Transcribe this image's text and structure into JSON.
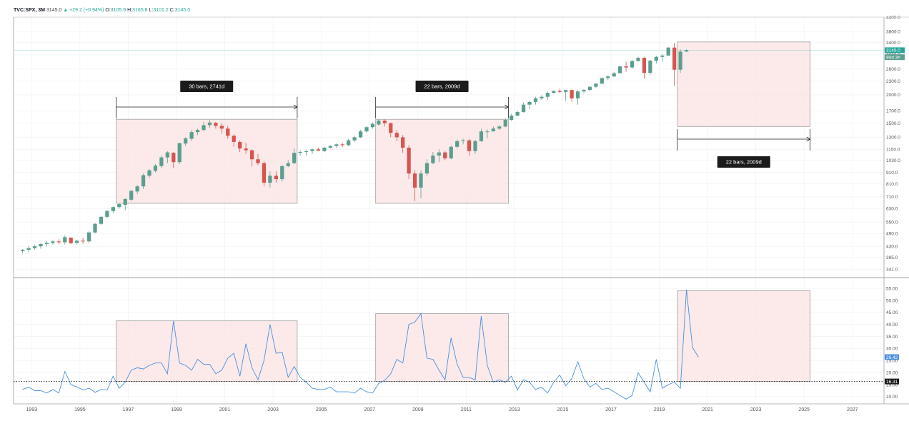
{
  "header": {
    "symbol": "TVC:SPX, 3M",
    "last": "3145.0",
    "change": "▲ +29.2 (+0.94%)",
    "o_label": "O:",
    "o": "3105.9",
    "h_label": "H:",
    "h": "3165.8",
    "l_label": "L:",
    "l": "3101.2",
    "c_label": "C:",
    "c": "3145.0"
  },
  "colors": {
    "up": "#5b9e8f",
    "down": "#d9534f",
    "box_fill": "#f9e3e1",
    "box_stroke": "#a0a0a0",
    "vix_line": "#4a8fe0",
    "grid": "#eef0f3"
  },
  "chart_data": [
    {
      "type": "candlestick",
      "title": "",
      "scale": "log",
      "ylim": [
        320,
        4400
      ],
      "y_ticks": [
        "341.0",
        "385.0",
        "430.0",
        "490.0",
        "550.0",
        "630.0",
        "710.0",
        "810.0",
        "910.0",
        "1030.0",
        "1150.0",
        "1300.0",
        "1500.0",
        "1700.0",
        "2000.0",
        "2300.0",
        "2600.0",
        "3000.0",
        "3400.0",
        "3800.0",
        "4400.0"
      ],
      "price_tags": [
        {
          "label": "3145.0",
          "value": 3145
        },
        {
          "label": "90d 3h",
          "value": 2930
        }
      ],
      "candles_start_year": 1992.5,
      "candles_step_years": 0.25,
      "candles": [
        [
          410,
          418,
          400,
          415
        ],
        [
          415,
          430,
          405,
          422
        ],
        [
          422,
          438,
          416,
          430
        ],
        [
          430,
          446,
          420,
          440
        ],
        [
          440,
          452,
          430,
          445
        ],
        [
          445,
          458,
          438,
          452
        ],
        [
          452,
          462,
          440,
          448
        ],
        [
          448,
          480,
          438,
          472
        ],
        [
          470,
          462,
          440,
          444
        ],
        [
          445,
          460,
          438,
          455
        ],
        [
          455,
          470,
          440,
          452
        ],
        [
          452,
          500,
          445,
          495
        ],
        [
          495,
          545,
          490,
          540
        ],
        [
          540,
          585,
          535,
          580
        ],
        [
          580,
          620,
          570,
          615
        ],
        [
          615,
          645,
          600,
          640
        ],
        [
          640,
          665,
          630,
          660
        ],
        [
          655,
          700,
          620,
          695
        ],
        [
          690,
          760,
          680,
          755
        ],
        [
          750,
          800,
          730,
          790
        ],
        [
          790,
          900,
          770,
          885
        ],
        [
          880,
          940,
          860,
          930
        ],
        [
          925,
          990,
          910,
          975
        ],
        [
          970,
          1080,
          950,
          1060
        ],
        [
          1060,
          1130,
          1000,
          1115
        ],
        [
          1110,
          1120,
          950,
          1010
        ],
        [
          1010,
          1230,
          990,
          1225
        ],
        [
          1220,
          1300,
          1190,
          1285
        ],
        [
          1280,
          1400,
          1250,
          1370
        ],
        [
          1370,
          1420,
          1330,
          1400
        ],
        [
          1400,
          1520,
          1380,
          1470
        ],
        [
          1470,
          1550,
          1430,
          1510
        ],
        [
          1505,
          1520,
          1420,
          1460
        ],
        [
          1460,
          1500,
          1350,
          1420
        ],
        [
          1420,
          1460,
          1280,
          1320
        ],
        [
          1320,
          1340,
          1180,
          1240
        ],
        [
          1240,
          1260,
          1120,
          1160
        ],
        [
          1160,
          1230,
          1100,
          1140
        ],
        [
          1140,
          1150,
          970,
          1040
        ],
        [
          1040,
          1100,
          980,
          1000
        ],
        [
          1000,
          1020,
          790,
          820
        ],
        [
          820,
          920,
          780,
          880
        ],
        [
          880,
          920,
          820,
          850
        ],
        [
          850,
          980,
          830,
          970
        ],
        [
          970,
          1030,
          960,
          1000
        ],
        [
          1000,
          1160,
          990,
          1110
        ],
        [
          1110,
          1140,
          1080,
          1120
        ],
        [
          1120,
          1140,
          1080,
          1130
        ],
        [
          1130,
          1160,
          1100,
          1150
        ],
        [
          1150,
          1170,
          1130,
          1135
        ],
        [
          1130,
          1180,
          1120,
          1170
        ],
        [
          1170,
          1200,
          1160,
          1190
        ],
        [
          1190,
          1220,
          1170,
          1210
        ],
        [
          1210,
          1230,
          1180,
          1200
        ],
        [
          1200,
          1280,
          1190,
          1260
        ],
        [
          1260,
          1320,
          1240,
          1300
        ],
        [
          1300,
          1400,
          1290,
          1380
        ],
        [
          1380,
          1460,
          1360,
          1440
        ],
        [
          1440,
          1510,
          1420,
          1490
        ],
        [
          1480,
          1560,
          1460,
          1540
        ],
        [
          1540,
          1560,
          1450,
          1500
        ],
        [
          1500,
          1510,
          1300,
          1360
        ],
        [
          1360,
          1400,
          1250,
          1300
        ],
        [
          1300,
          1330,
          1110,
          1170
        ],
        [
          1170,
          1200,
          850,
          900
        ],
        [
          900,
          930,
          680,
          780
        ],
        [
          780,
          930,
          700,
          900
        ],
        [
          900,
          1040,
          880,
          1000
        ],
        [
          1000,
          1120,
          990,
          1080
        ],
        [
          1080,
          1150,
          1010,
          1115
        ],
        [
          1115,
          1130,
          1030,
          1050
        ],
        [
          1050,
          1200,
          1040,
          1180
        ],
        [
          1180,
          1270,
          1160,
          1250
        ],
        [
          1250,
          1280,
          1210,
          1260
        ],
        [
          1260,
          1280,
          1080,
          1130
        ],
        [
          1130,
          1270,
          1100,
          1250
        ],
        [
          1250,
          1420,
          1240,
          1380
        ],
        [
          1380,
          1410,
          1290,
          1380
        ],
        [
          1380,
          1450,
          1380,
          1420
        ],
        [
          1420,
          1470,
          1400,
          1450
        ],
        [
          1450,
          1580,
          1440,
          1550
        ],
        [
          1550,
          1650,
          1540,
          1620
        ],
        [
          1620,
          1700,
          1610,
          1680
        ],
        [
          1680,
          1850,
          1670,
          1810
        ],
        [
          1810,
          1880,
          1730,
          1860
        ],
        [
          1860,
          1960,
          1810,
          1930
        ],
        [
          1930,
          1990,
          1900,
          1960
        ],
        [
          1960,
          2070,
          1900,
          2040
        ],
        [
          2040,
          2090,
          2030,
          2080
        ],
        [
          2080,
          2130,
          2040,
          2060
        ],
        [
          2060,
          2100,
          1880,
          2100
        ],
        [
          2100,
          2110,
          1860,
          1930
        ],
        [
          1930,
          2100,
          1810,
          2070
        ],
        [
          2070,
          2120,
          2030,
          2100
        ],
        [
          2100,
          2180,
          2080,
          2170
        ],
        [
          2170,
          2250,
          2150,
          2240
        ],
        [
          2240,
          2390,
          2230,
          2370
        ],
        [
          2370,
          2440,
          2320,
          2410
        ],
        [
          2410,
          2520,
          2400,
          2490
        ],
        [
          2490,
          2680,
          2480,
          2670
        ],
        [
          2670,
          2800,
          2530,
          2640
        ],
        [
          2640,
          2850,
          2600,
          2820
        ],
        [
          2820,
          2940,
          2800,
          2910
        ],
        [
          2910,
          2940,
          2350,
          2500
        ],
        [
          2500,
          2850,
          2450,
          2830
        ],
        [
          2830,
          2970,
          2750,
          2940
        ],
        [
          2940,
          3030,
          2800,
          2980
        ],
        [
          2980,
          3240,
          2970,
          3230
        ],
        [
          3230,
          3390,
          2190,
          2580
        ],
        [
          2580,
          3180,
          2500,
          3100
        ],
        [
          3100,
          3170,
          3100,
          3145
        ]
      ],
      "measures": [
        {
          "label": "30 bars, 2741d",
          "x0": 1996.5,
          "x1": 2004.0
        },
        {
          "label": "22 bars, 2009d",
          "x0": 2007.25,
          "x1": 2012.75
        },
        {
          "label": "22 bars, 2009d",
          "x0": 2019.75,
          "x1": 2025.25
        }
      ],
      "boxes": [
        {
          "x0": 1996.5,
          "x1": 2004.0,
          "y0": 665,
          "y1": 1560
        },
        {
          "x0": 2007.25,
          "x1": 2012.75,
          "y0": 665,
          "y1": 1560
        },
        {
          "x0": 2019.75,
          "x1": 2025.25,
          "y0": 1450,
          "y1": 3420
        }
      ]
    },
    {
      "type": "line",
      "title": "",
      "ylim": [
        7,
        58
      ],
      "y_ticks": [
        "10.00",
        "15.00",
        "20.00",
        "25.00",
        "30.00",
        "35.00",
        "40.00",
        "45.00",
        "50.00",
        "55.00"
      ],
      "last_value_label": "26.42",
      "hline_value": 16.31,
      "hline_label": "16.31",
      "x_start_year": 1992.5,
      "x_step_years": 0.25,
      "values": [
        13.0,
        14.0,
        12.5,
        12.5,
        11.5,
        13.0,
        11.5,
        20.5,
        15.0,
        14.0,
        12.8,
        13.5,
        11.8,
        13.0,
        12.8,
        18.5,
        13.5,
        16.0,
        21.0,
        22.0,
        21.5,
        23.0,
        24.0,
        24.0,
        19.5,
        41.5,
        24.0,
        23.0,
        21.0,
        25.5,
        23.5,
        23.5,
        19.5,
        21.0,
        26.0,
        28.0,
        18.5,
        32.0,
        22.0,
        17.0,
        25.0,
        40.0,
        28.0,
        28.5,
        18.0,
        22.5,
        18.0,
        16.0,
        13.5,
        13.0,
        13.0,
        14.0,
        12.0,
        12.0,
        12.0,
        11.5,
        13.5,
        12.0,
        11.5,
        15.5,
        16.8,
        19.5,
        25.5,
        24.0,
        40.0,
        41.0,
        44.5,
        26.0,
        25.5,
        21.0,
        17.0,
        34.5,
        23.5,
        18.0,
        18.0,
        17.0,
        43.5,
        23.0,
        16.0,
        17.0,
        16.0,
        18.5,
        12.8,
        17.0,
        16.0,
        13.0,
        14.0,
        11.5,
        16.0,
        19.0,
        14.5,
        17.5,
        24.5,
        17.5,
        14.0,
        15.5,
        13.0,
        13.5,
        12.0,
        10.5,
        9.0,
        10.5,
        20.0,
        16.0,
        12.0,
        25.5,
        13.5,
        15.0,
        16.0,
        13.5,
        54.5,
        30.5,
        26.42
      ],
      "boxes": [
        {
          "x0": 1996.5,
          "x1": 2004.0,
          "y0": 16.31,
          "y1": 41.5
        },
        {
          "x0": 2007.25,
          "x1": 2012.75,
          "y0": 16.31,
          "y1": 44.5
        },
        {
          "x0": 2019.75,
          "x1": 2025.25,
          "y0": 16.31,
          "y1": 54.0
        }
      ]
    }
  ],
  "x_axis": {
    "range": [
      1992.25,
      2028.25
    ],
    "ticks": [
      "1993",
      "1995",
      "1997",
      "1999",
      "2001",
      "2003",
      "2005",
      "2007",
      "2009",
      "2011",
      "2013",
      "2015",
      "2017",
      "2019",
      "2021",
      "2023",
      "2025",
      "2027"
    ]
  }
}
